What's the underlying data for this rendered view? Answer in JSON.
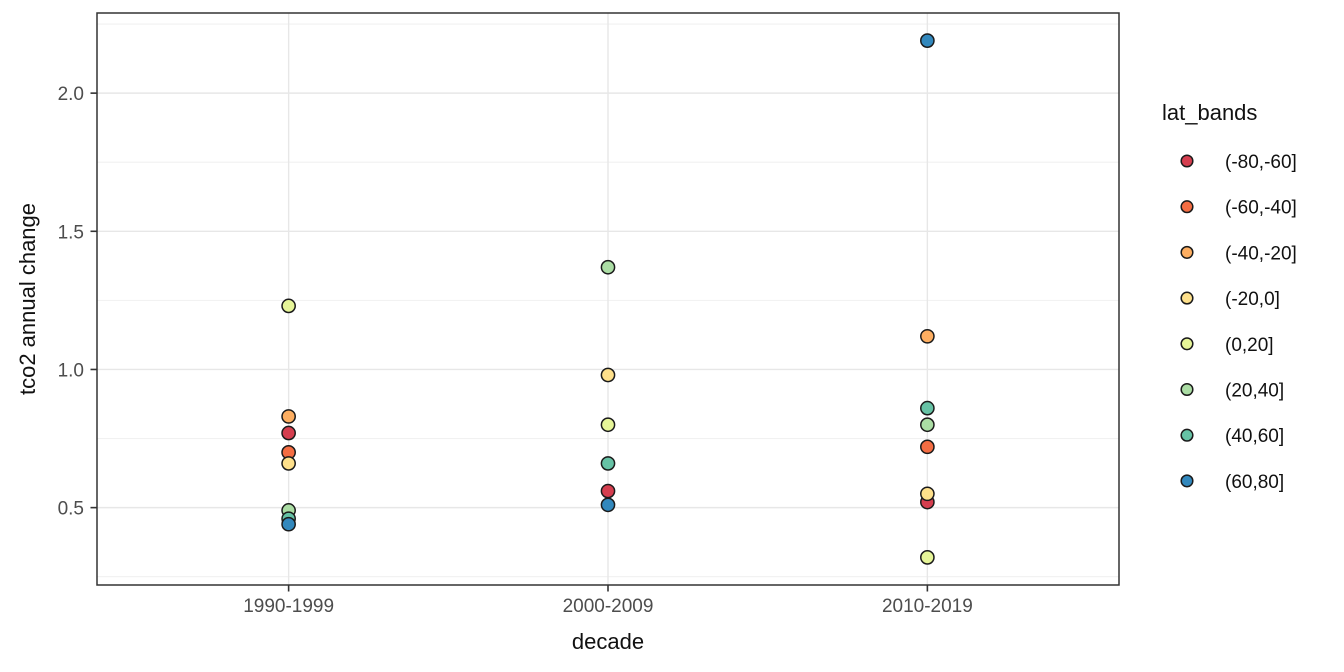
{
  "chart_data": {
    "type": "scatter",
    "title": "",
    "xlabel": "decade",
    "ylabel": "tco2 annual change",
    "categories": [
      "1990-1999",
      "2000-2009",
      "2010-2019"
    ],
    "y_ticks": [
      0.5,
      1.0,
      1.5,
      2.0
    ],
    "y_tick_labels": [
      "0.5",
      "1.0",
      "1.5",
      "2.0"
    ],
    "y_minor_ticks": [
      0.25,
      0.75,
      1.25,
      1.75,
      2.25
    ],
    "ylim": [
      0.22,
      2.29
    ],
    "grid": "on",
    "legend_position": "right",
    "legend_title": "lat_bands",
    "series": [
      {
        "name": "(-80,-60]",
        "color": "#d53e4f",
        "points": [
          {
            "x": "1990-1999",
            "y": 0.77
          },
          {
            "x": "2000-2009",
            "y": 0.56
          },
          {
            "x": "2010-2019",
            "y": 0.52
          }
        ]
      },
      {
        "name": "(-60,-40]",
        "color": "#f46d43",
        "points": [
          {
            "x": "1990-1999",
            "y": 0.7
          },
          {
            "x": "2010-2019",
            "y": 0.72
          }
        ]
      },
      {
        "name": "(-40,-20]",
        "color": "#fdae61",
        "points": [
          {
            "x": "1990-1999",
            "y": 0.83
          },
          {
            "x": "2010-2019",
            "y": 1.12
          }
        ]
      },
      {
        "name": "(-20,0]",
        "color": "#fee08b",
        "points": [
          {
            "x": "1990-1999",
            "y": 0.66
          },
          {
            "x": "2000-2009",
            "y": 0.98
          },
          {
            "x": "2010-2019",
            "y": 0.55
          }
        ]
      },
      {
        "name": "(0,20]",
        "color": "#e6f598",
        "points": [
          {
            "x": "1990-1999",
            "y": 1.23
          },
          {
            "x": "2000-2009",
            "y": 0.8
          },
          {
            "x": "2010-2019",
            "y": 0.32
          }
        ]
      },
      {
        "name": "(20,40]",
        "color": "#abdda4",
        "points": [
          {
            "x": "1990-1999",
            "y": 0.49
          },
          {
            "x": "2000-2009",
            "y": 1.37
          },
          {
            "x": "2010-2019",
            "y": 0.8
          }
        ]
      },
      {
        "name": "(40,60]",
        "color": "#66c2a5",
        "points": [
          {
            "x": "1990-1999",
            "y": 0.46
          },
          {
            "x": "2000-2009",
            "y": 0.66
          },
          {
            "x": "2010-2019",
            "y": 0.86
          }
        ]
      },
      {
        "name": "(60,80]",
        "color": "#3288bd",
        "points": [
          {
            "x": "1990-1999",
            "y": 0.44
          },
          {
            "x": "2000-2009",
            "y": 0.51
          },
          {
            "x": "2010-2019",
            "y": 2.19
          }
        ]
      }
    ],
    "style": {
      "panel_background": "#ffffff",
      "panel_border": "#333333",
      "grid_major": "#e7e7e7",
      "grid_minor": "#f1f1f1",
      "tick_color": "#333333",
      "tick_label_color": "#4d4d4d",
      "text_color": "#111111",
      "point_outline": "#1a1a1a"
    }
  }
}
